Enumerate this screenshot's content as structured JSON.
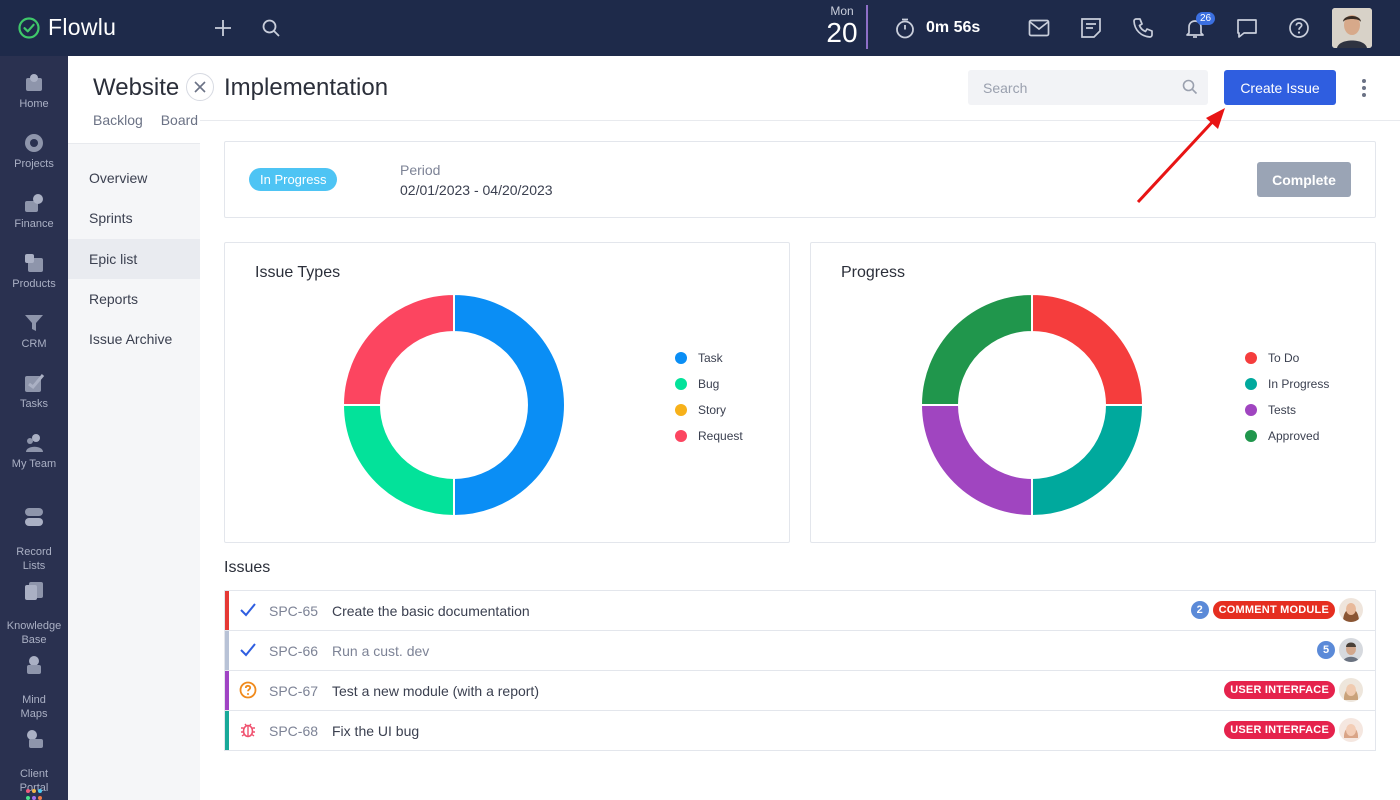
{
  "app": {
    "name": "Flowlu"
  },
  "topbar": {
    "date_dow": "Mon",
    "date_day": "20",
    "timer": "0m 56s",
    "notifications_count": "26"
  },
  "sidebar": {
    "items": [
      {
        "label": "Home",
        "icon": "home-icon"
      },
      {
        "label": "Projects",
        "icon": "projects-icon"
      },
      {
        "label": "Finance",
        "icon": "finance-icon"
      },
      {
        "label": "Products",
        "icon": "products-icon"
      },
      {
        "label": "CRM",
        "icon": "crm-icon"
      },
      {
        "label": "Tasks",
        "icon": "tasks-icon"
      },
      {
        "label": "My Team",
        "icon": "team-icon"
      },
      {
        "label": "Record\nLists",
        "icon": "record-lists-icon"
      },
      {
        "label": "Knowledge\nBase",
        "icon": "knowledge-base-icon"
      },
      {
        "label": "Mind\nMaps",
        "icon": "mind-maps-icon"
      },
      {
        "label": "Client\nPortal",
        "icon": "client-portal-icon"
      }
    ]
  },
  "project": {
    "title": "Website",
    "tabs": [
      "Backlog",
      "Board"
    ],
    "nav": [
      "Overview",
      "Sprints",
      "Epic list",
      "Reports",
      "Issue Archive"
    ],
    "active_nav": "Epic list"
  },
  "main": {
    "title": "Implementation",
    "search_placeholder": "Search",
    "create_label": "Create Issue",
    "status": "In Progress",
    "period_label": "Period",
    "period_value": "02/01/2023 - 04/20/2023",
    "complete_label": "Complete",
    "issues_title": "Issues"
  },
  "chart_data": [
    {
      "type": "pie",
      "title": "Issue Types",
      "categories": [
        "Task",
        "Bug",
        "Story",
        "Request"
      ],
      "values": [
        2,
        1,
        0,
        1
      ],
      "colors": [
        "#0a8ef5",
        "#03e29a",
        "#f7b11a",
        "#fc4560"
      ]
    },
    {
      "type": "pie",
      "title": "Progress",
      "categories": [
        "To Do",
        "In Progress",
        "Tests",
        "Approved"
      ],
      "values": [
        1,
        1,
        1,
        1
      ],
      "colors": [
        "#f53d3d",
        "#00a99d",
        "#a045c0",
        "#20964c"
      ]
    }
  ],
  "issues": [
    {
      "key": "SPC-65",
      "name": "Create the basic documentation",
      "bar": "#e53935",
      "icon": "check-icon",
      "count": "2",
      "tag": "COMMENT MODULE",
      "tag_color": "#e52e20"
    },
    {
      "key": "SPC-66",
      "name": "Run a cust. dev",
      "bar": "#b8c2d6",
      "icon": "check-icon",
      "count": "5",
      "tag": "",
      "tag_color": ""
    },
    {
      "key": "SPC-67",
      "name": "Test a new module (with a report)",
      "bar": "#a044c4",
      "icon": "question-icon",
      "count": "",
      "tag": "USER INTERFACE",
      "tag_color": "#e5224c"
    },
    {
      "key": "SPC-68",
      "name": "Fix the UI bug",
      "bar": "#18a999",
      "icon": "bug-icon",
      "count": "",
      "tag": "USER INTERFACE",
      "tag_color": "#e5224c"
    }
  ]
}
